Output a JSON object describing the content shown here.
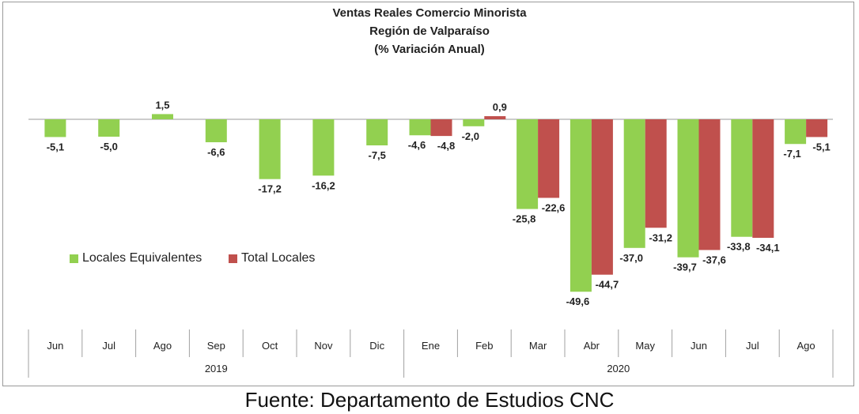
{
  "title": [
    "Ventas Reales Comercio Minorista",
    "Región de Valparaíso",
    "(% Variación Anual)"
  ],
  "source": "Fuente: Departamento de Estudios CNC",
  "colors": {
    "green": "#92d050",
    "red": "#c0504d",
    "axis": "#a0a0a0",
    "text": "#222222"
  },
  "legend": [
    {
      "name": "Locales Equivalentes",
      "color": "#92d050"
    },
    {
      "name": "Total Locales",
      "color": "#c0504d"
    }
  ],
  "chart_data": {
    "type": "bar",
    "title": "Ventas Reales Comercio Minorista Región de Valparaíso (% Variación Anual)",
    "categories": [
      "Jun",
      "Jul",
      "Ago",
      "Sep",
      "Oct",
      "Nov",
      "Dic",
      "Ene",
      "Feb",
      "Mar",
      "Abr",
      "May",
      "Jun",
      "Jul",
      "Ago"
    ],
    "groups": [
      {
        "label": "2019",
        "count": 7
      },
      {
        "label": "2020",
        "count": 8
      }
    ],
    "series": [
      {
        "name": "Locales Equivalentes",
        "color": "#92d050",
        "values": [
          -5.1,
          -5.0,
          1.5,
          -6.6,
          -17.2,
          -16.2,
          -7.5,
          -4.6,
          -2.0,
          -25.8,
          -49.6,
          -37.0,
          -39.7,
          -33.8,
          -7.1
        ],
        "labels": [
          "-5,1",
          "-5,0",
          "1,5",
          "-6,6",
          "-17,2",
          "-16,2",
          "-7,5",
          "-4,6",
          "-2,0",
          "-25,8",
          "-49,6",
          "-37,0",
          "-39,7",
          "-33,8",
          "-7,1"
        ]
      },
      {
        "name": "Total Locales",
        "color": "#c0504d",
        "values": [
          null,
          null,
          null,
          null,
          null,
          null,
          null,
          -4.8,
          0.9,
          -22.6,
          -44.7,
          -31.2,
          -37.6,
          -34.1,
          -5.1
        ],
        "labels": [
          null,
          null,
          null,
          null,
          null,
          null,
          null,
          "-4,8",
          "0,9",
          "-22,6",
          "-44,7",
          "-31,2",
          "-37,6",
          "-34,1",
          "-5,1"
        ]
      }
    ],
    "ylim": [
      -50,
      2
    ],
    "grid": false,
    "legend_position": "left-middle"
  }
}
